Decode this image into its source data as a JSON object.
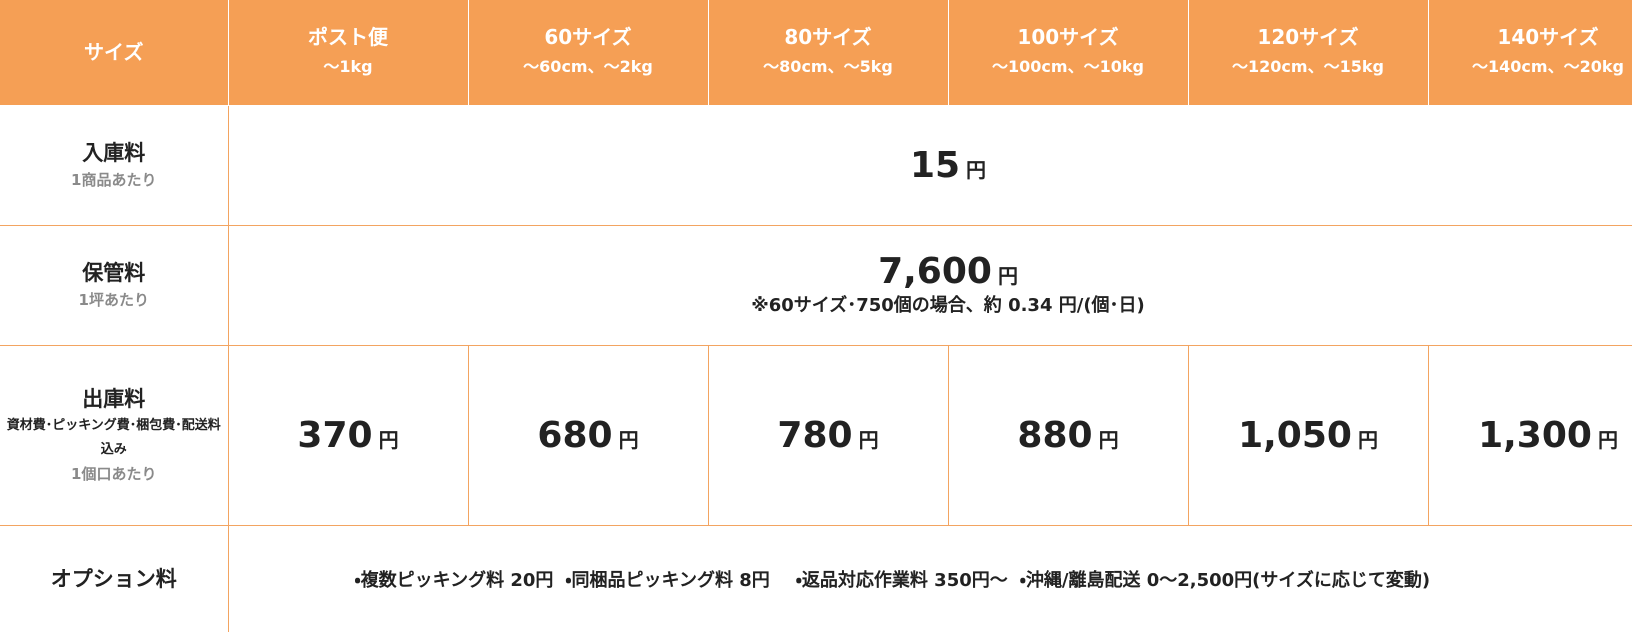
{
  "header": {
    "label": "サイズ",
    "columns": [
      {
        "name": "ポスト便",
        "spec": "～1kg"
      },
      {
        "name": "60サイズ",
        "spec": "～60cm、～2kg"
      },
      {
        "name": "80サイズ",
        "spec": "～80cm、～5kg"
      },
      {
        "name": "100サイズ",
        "spec": "～100cm、～10kg"
      },
      {
        "name": "120サイズ",
        "spec": "～120cm、～15kg"
      },
      {
        "name": "140サイズ",
        "spec": "～140cm、～20kg"
      }
    ]
  },
  "rows": [
    {
      "label": "入庫料",
      "sub": "1商品あたり",
      "price": "15",
      "unit": "円"
    },
    {
      "label": "保管料",
      "sub": "1坪あたり",
      "price": "7,600",
      "unit": "円",
      "note": "※60サイズ･750個の場合、約 0.34 円/(個･日)"
    },
    {
      "label": "出庫料",
      "detail": "資材費･ピッキング費･梱包費･配送料込み",
      "sub": "1個口あたり",
      "prices": [
        "370",
        "680",
        "780",
        "880",
        "1,050",
        "1,300"
      ],
      "unit": "円"
    },
    {
      "label": "オプション料",
      "items": [
        "・複数ピッキング料 20円",
        "・同梱品ピッキング料 8円",
        "・返品対応作業料 350円～",
        "・沖縄/離島配送 0～2,500円(サイズに応じて変動)"
      ]
    }
  ]
}
